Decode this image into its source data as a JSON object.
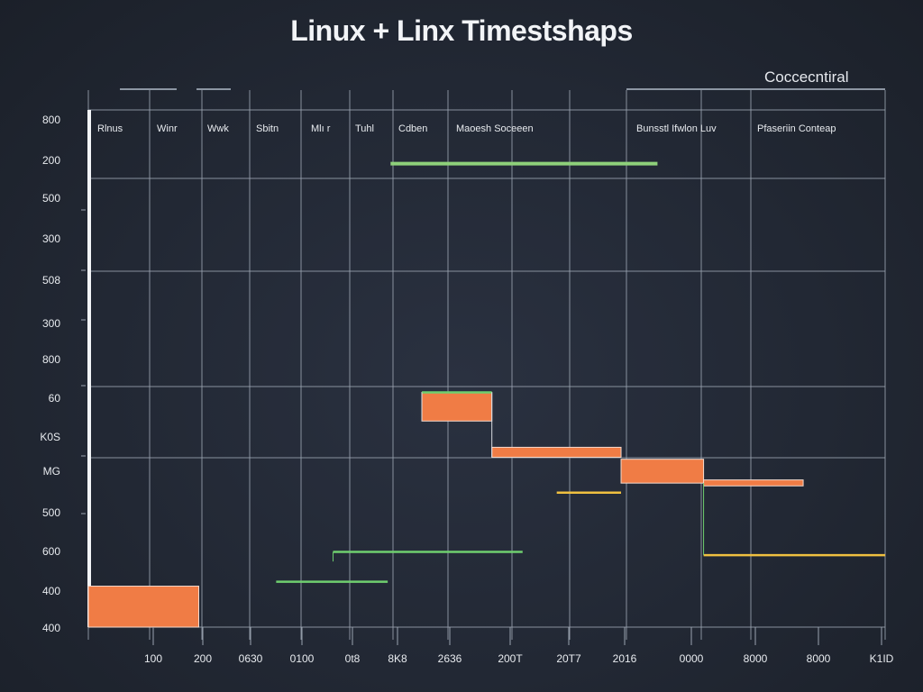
{
  "chart_data": {
    "type": "timeline",
    "title": "Linux + Linx Timestshaps",
    "legend_label": "Coccecntiral",
    "column_headers": [
      "Rlnus",
      "Winr",
      "Wwk",
      "Sbitn",
      "Mlı r",
      "Tuhl",
      "Cdben",
      "Maoesh Soceeen",
      "Bunsstl Ifwlon Luv",
      "Pfaseriin Conteap"
    ],
    "x_ticks": [
      "100",
      "200",
      "0630",
      "0100",
      "0t8",
      "8K8",
      "2636",
      "200T",
      "20T7",
      "2016",
      "0000",
      "8000",
      "8000",
      "K1ID"
    ],
    "y_ticks": [
      "800",
      "200",
      "500",
      "300",
      "508",
      "300",
      "800",
      "60",
      "K0S",
      "MG",
      "500",
      "600",
      "400",
      "400"
    ],
    "x_range": [
      0,
      14
    ],
    "y_range": [
      0,
      13
    ],
    "bars": [
      {
        "x0": 0.0,
        "x1": 1.94,
        "y0": 0.0,
        "y1": 1.03,
        "color": "#f07c45"
      },
      {
        "x0": 5.86,
        "x1": 7.09,
        "y0": 5.18,
        "y1": 5.9,
        "color": "#f07c45"
      },
      {
        "x0": 7.09,
        "x1": 9.36,
        "y0": 4.27,
        "y1": 4.52,
        "color": "#f07c45"
      },
      {
        "x0": 9.36,
        "x1": 10.81,
        "y0": 3.62,
        "y1": 4.22,
        "color": "#f07c45"
      },
      {
        "x0": 10.81,
        "x1": 12.56,
        "y0": 3.55,
        "y1": 3.7,
        "color": "#f07c45"
      }
    ],
    "lines": [
      {
        "x0": 5.86,
        "x1": 7.09,
        "y": 5.9,
        "color": "#6fcf6f"
      },
      {
        "x0": 8.23,
        "x1": 9.36,
        "y": 3.38,
        "color": "#f0c040"
      },
      {
        "x0": 10.81,
        "x1": 14.0,
        "y": 1.81,
        "color": "#f0c040"
      },
      {
        "x0": 4.3,
        "x1": 7.63,
        "y": 1.89,
        "color": "#6fcf6f"
      },
      {
        "x0": 3.3,
        "x1": 5.26,
        "y": 1.14,
        "color": "#6fcf6f"
      },
      {
        "x0": 5.31,
        "x1": 10.0,
        "y": 11.65,
        "color": "#8ed07a"
      }
    ],
    "grid": true
  }
}
